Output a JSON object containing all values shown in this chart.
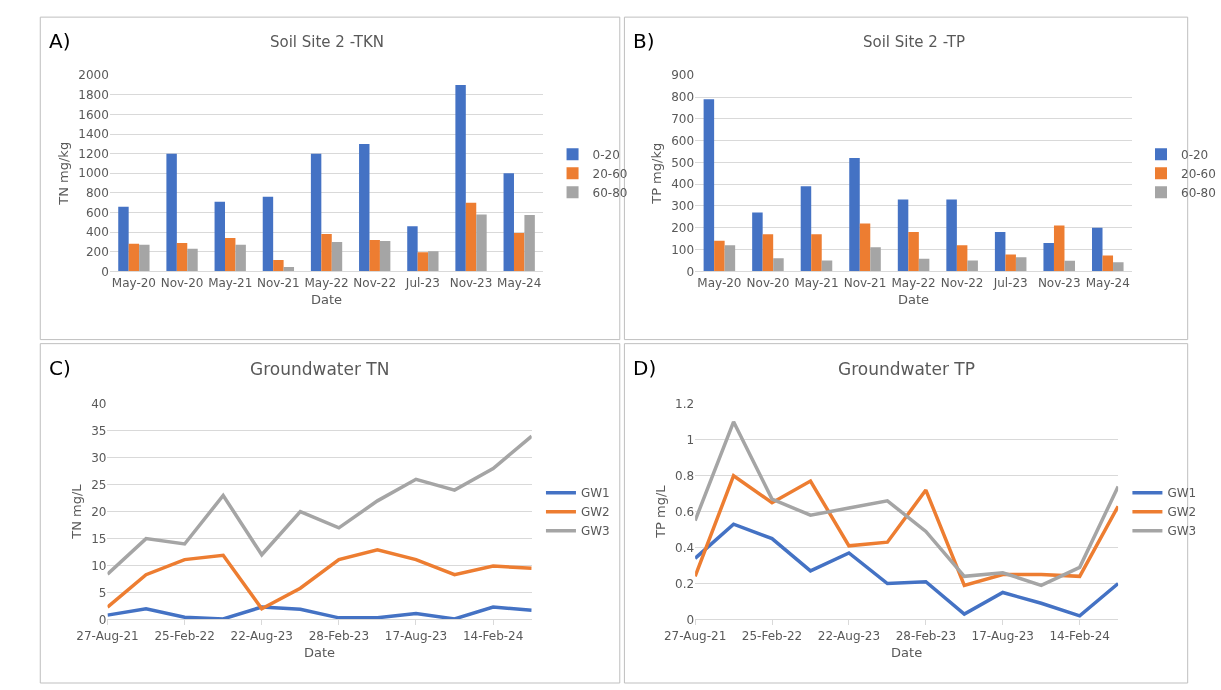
{
  "chart_data": [
    {
      "type": "bar",
      "title": "Soil Site 2 -TKN",
      "xlabel": "Date",
      "ylabel": "TN mg/kg",
      "annotations": [
        "A)"
      ],
      "categories": [
        "May-20",
        "Nov-20",
        "May-21",
        "Nov-21",
        "May-22",
        "Nov-22",
        "Jul-23",
        "Nov-23",
        "May-24"
      ],
      "series": [
        {
          "name": "0-20",
          "color": "#4472c4",
          "values": [
            660,
            1200,
            710,
            760,
            1200,
            1300,
            460,
            1900,
            1000
          ]
        },
        {
          "name": "20-60",
          "color": "#ed7d31",
          "values": [
            280,
            290,
            340,
            115,
            380,
            320,
            195,
            700,
            390
          ]
        },
        {
          "name": "60-80",
          "color": "#a5a5a5",
          "values": [
            270,
            230,
            270,
            45,
            300,
            310,
            205,
            580,
            575
          ]
        }
      ],
      "ylim": [
        0,
        2000
      ],
      "yticks": [
        0,
        200,
        400,
        600,
        800,
        1000,
        1200,
        1400,
        1600,
        1800,
        2000
      ],
      "grid": "y",
      "legend": "right"
    },
    {
      "type": "bar",
      "title": "Soil Site 2 -TP",
      "xlabel": "Date",
      "ylabel": "TP mg/kg",
      "annotations": [
        "B)"
      ],
      "categories": [
        "May-20",
        "Nov-20",
        "May-21",
        "Nov-21",
        "May-22",
        "Nov-22",
        "Jul-23",
        "Nov-23",
        "May-24"
      ],
      "series": [
        {
          "name": "0-20",
          "color": "#4472c4",
          "values": [
            790,
            270,
            390,
            520,
            330,
            330,
            180,
            130,
            200
          ]
        },
        {
          "name": "20-60",
          "color": "#ed7d31",
          "values": [
            140,
            170,
            170,
            220,
            180,
            120,
            77,
            210,
            73
          ]
        },
        {
          "name": "60-80",
          "color": "#a5a5a5",
          "values": [
            120,
            60,
            50,
            110,
            58,
            50,
            65,
            48,
            42
          ]
        }
      ],
      "ylim": [
        0,
        900
      ],
      "yticks": [
        0,
        100,
        200,
        300,
        400,
        500,
        600,
        700,
        800,
        900
      ],
      "grid": "y",
      "legend": "right"
    },
    {
      "type": "line",
      "title": "Groundwater TN",
      "xlabel": "Date",
      "ylabel": "TN mg/L",
      "annotations": [
        "C)"
      ],
      "categories": [
        "27-Aug-21",
        null,
        "25-Feb-22",
        null,
        "22-Aug-23",
        null,
        "28-Feb-23",
        null,
        "17-Aug-23",
        null,
        "14-Feb-24",
        null
      ],
      "series": [
        {
          "name": "GW1",
          "color": "#4472c4",
          "values": [
            0.8,
            2.0,
            0.4,
            0.1,
            2.3,
            1.9,
            0.3,
            0.3,
            1.1,
            0.1,
            2.3,
            1.7
          ]
        },
        {
          "name": "GW2",
          "color": "#ed7d31",
          "values": [
            2.3,
            8.3,
            11.1,
            11.9,
            2.0,
            5.8,
            11.1,
            12.9,
            11.1,
            8.3,
            9.9,
            9.5
          ]
        },
        {
          "name": "GW3",
          "color": "#a5a5a5",
          "values": [
            8.4,
            15,
            14,
            23,
            12,
            20,
            17,
            22,
            26,
            24,
            28,
            34
          ]
        }
      ],
      "ylim": [
        0,
        40
      ],
      "yticks": [
        0,
        5,
        10,
        15,
        20,
        25,
        30,
        35,
        40
      ],
      "grid": "y",
      "legend": "right",
      "marker": "none",
      "line_style": "solid"
    },
    {
      "type": "line",
      "title": "Groundwater TP",
      "xlabel": "Date",
      "ylabel": "TP mg/L",
      "annotations": [
        "D)"
      ],
      "categories": [
        "27-Aug-21",
        null,
        "25-Feb-22",
        null,
        "22-Aug-23",
        null,
        "28-Feb-23",
        null,
        "17-Aug-23",
        null,
        "14-Feb-24",
        null
      ],
      "series": [
        {
          "name": "GW1",
          "color": "#4472c4",
          "values": [
            0.34,
            0.53,
            0.45,
            0.27,
            0.37,
            0.2,
            0.21,
            0.03,
            0.15,
            0.09,
            0.02,
            0.2
          ]
        },
        {
          "name": "GW2",
          "color": "#ed7d31",
          "values": [
            0.24,
            0.8,
            0.65,
            0.77,
            0.41,
            0.43,
            0.72,
            0.19,
            0.25,
            0.25,
            0.24,
            0.63
          ]
        },
        {
          "name": "GW3",
          "color": "#a5a5a5",
          "values": [
            0.55,
            1.1,
            0.67,
            0.58,
            0.62,
            0.66,
            0.49,
            0.24,
            0.26,
            0.19,
            0.29,
            0.74
          ]
        }
      ],
      "ylim": [
        0,
        1.2
      ],
      "yticks": [
        0,
        {
          "value": 0.2,
          "label": "0.2"
        },
        {
          "value": 0.4,
          "label": "0.4"
        },
        {
          "value": 0.6,
          "label": "0.6"
        },
        {
          "value": 0.8,
          "label": "0.8"
        },
        1,
        {
          "value": 1.2,
          "label": "1.2"
        }
      ],
      "grid": "y",
      "legend": "right",
      "marker": "none",
      "line_style": "solid"
    }
  ]
}
